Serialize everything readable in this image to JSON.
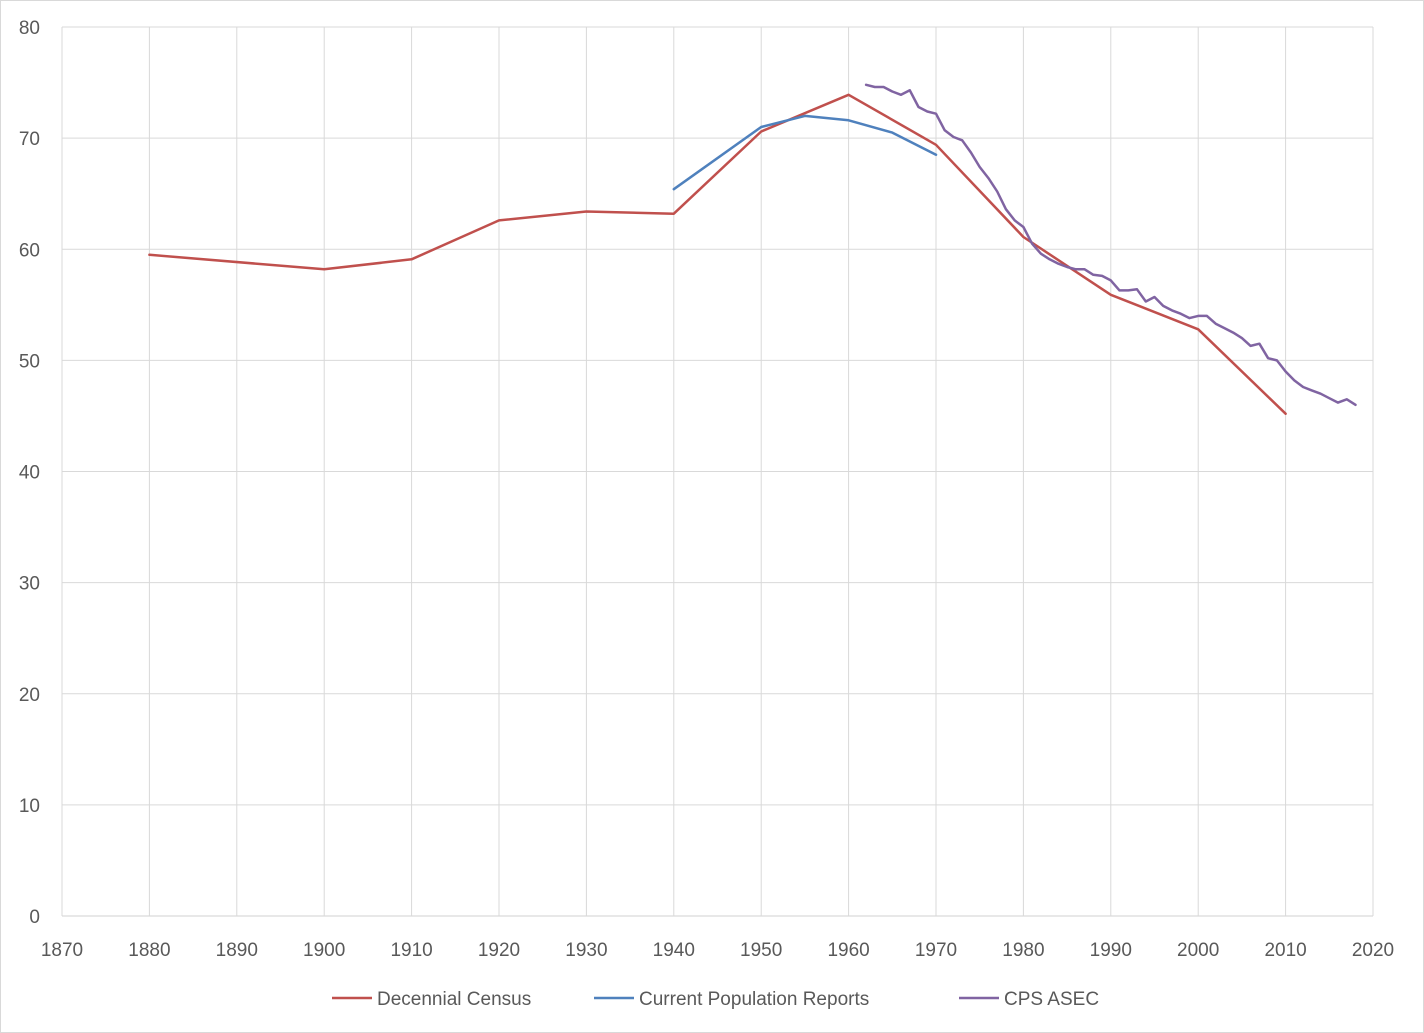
{
  "chart_data": {
    "type": "line",
    "title": "",
    "xlabel": "",
    "ylabel": "",
    "xlim": [
      1870,
      2020
    ],
    "ylim": [
      0,
      80
    ],
    "x_ticks": [
      "1870",
      "1880",
      "1890",
      "1900",
      "1910",
      "1920",
      "1930",
      "1940",
      "1950",
      "1960",
      "1970",
      "1980",
      "1990",
      "2000",
      "2010",
      "2020"
    ],
    "y_ticks": [
      "0",
      "10",
      "20",
      "30",
      "40",
      "50",
      "60",
      "70",
      "80"
    ],
    "grid": true,
    "legend_position": "bottom",
    "series": [
      {
        "name": "Decennial Census",
        "color": "#c0504d",
        "points": [
          [
            1880,
            59.5
          ],
          [
            1900,
            58.2
          ],
          [
            1910,
            59.1
          ],
          [
            1920,
            62.6
          ],
          [
            1930,
            63.4
          ],
          [
            1940,
            63.2
          ],
          [
            1950,
            70.6
          ],
          [
            1960,
            73.9
          ],
          [
            1970,
            69.4
          ],
          [
            1980,
            61.1
          ],
          [
            1990,
            55.9
          ],
          [
            2000,
            52.8
          ],
          [
            2010,
            45.2
          ]
        ]
      },
      {
        "name": "Current Population Reports",
        "color": "#4f81bd",
        "points": [
          [
            1940,
            65.4
          ],
          [
            1950,
            71.0
          ],
          [
            1955,
            72.0
          ],
          [
            1960,
            71.6
          ],
          [
            1965,
            70.5
          ],
          [
            1970,
            68.5
          ]
        ]
      },
      {
        "name": "CPS ASEC",
        "color": "#8064a2",
        "points": [
          [
            1962,
            74.8
          ],
          [
            1963,
            74.6
          ],
          [
            1964,
            74.6
          ],
          [
            1965,
            74.2
          ],
          [
            1966,
            73.9
          ],
          [
            1967,
            74.3
          ],
          [
            1968,
            72.8
          ],
          [
            1969,
            72.4
          ],
          [
            1970,
            72.2
          ],
          [
            1971,
            70.7
          ],
          [
            1972,
            70.1
          ],
          [
            1973,
            69.8
          ],
          [
            1974,
            68.7
          ],
          [
            1975,
            67.4
          ],
          [
            1976,
            66.4
          ],
          [
            1977,
            65.2
          ],
          [
            1978,
            63.6
          ],
          [
            1979,
            62.6
          ],
          [
            1980,
            62.0
          ],
          [
            1981,
            60.5
          ],
          [
            1982,
            59.6
          ],
          [
            1983,
            59.1
          ],
          [
            1984,
            58.7
          ],
          [
            1985,
            58.4
          ],
          [
            1986,
            58.2
          ],
          [
            1987,
            58.2
          ],
          [
            1988,
            57.7
          ],
          [
            1989,
            57.6
          ],
          [
            1990,
            57.2
          ],
          [
            1991,
            56.3
          ],
          [
            1992,
            56.3
          ],
          [
            1993,
            56.4
          ],
          [
            1994,
            55.3
          ],
          [
            1995,
            55.7
          ],
          [
            1996,
            54.9
          ],
          [
            1997,
            54.5
          ],
          [
            1998,
            54.2
          ],
          [
            1999,
            53.8
          ],
          [
            2000,
            54.0
          ],
          [
            2001,
            54.0
          ],
          [
            2002,
            53.3
          ],
          [
            2003,
            52.9
          ],
          [
            2004,
            52.5
          ],
          [
            2005,
            52.0
          ],
          [
            2006,
            51.3
          ],
          [
            2007,
            51.5
          ],
          [
            2008,
            50.2
          ],
          [
            2009,
            50.0
          ],
          [
            2010,
            49.0
          ],
          [
            2011,
            48.2
          ],
          [
            2012,
            47.6
          ],
          [
            2013,
            47.3
          ],
          [
            2014,
            47.0
          ],
          [
            2015,
            46.6
          ],
          [
            2016,
            46.2
          ],
          [
            2017,
            46.5
          ],
          [
            2018,
            46.0
          ]
        ]
      }
    ]
  }
}
